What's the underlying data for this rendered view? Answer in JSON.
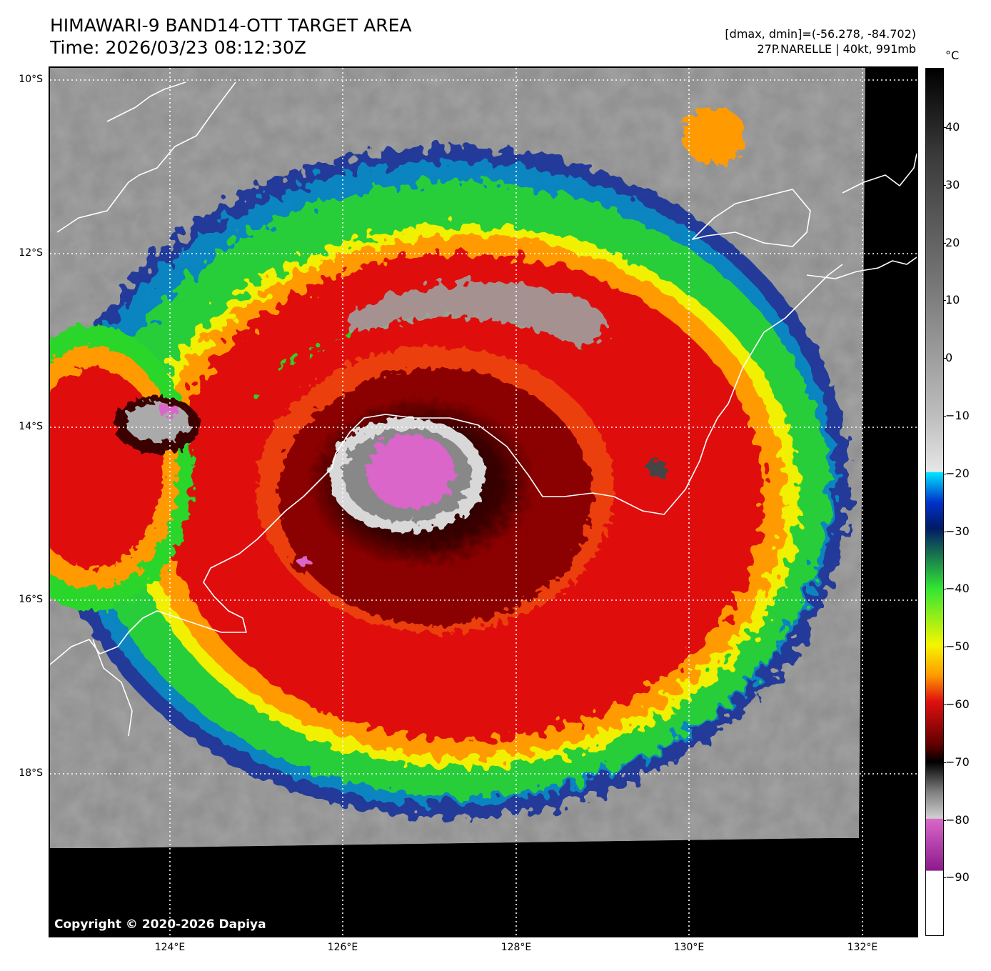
{
  "header": {
    "title_line1": "HIMAWARI-9 BAND14-OTT TARGET AREA",
    "title_line2": "Time: 2026/03/23 08:12:30Z",
    "stats_line1": "[dmax, dmin]=(-56.278, -84.702)",
    "stats_line2": "27P.NARELLE | 40kt, 991mb"
  },
  "map": {
    "copyright": "Copyright © 2020-2026 Dapiya",
    "lat_labels": [
      "10°S",
      "12°S",
      "14°S",
      "16°S",
      "18°S"
    ],
    "lon_labels": [
      "124°E",
      "126°E",
      "128°E",
      "130°E",
      "132°E"
    ]
  },
  "colorbar": {
    "unit": "°C",
    "labels": [
      "40",
      "30",
      "20",
      "10",
      "0",
      "−10",
      "−20",
      "−30",
      "−40",
      "−50",
      "−60",
      "−70",
      "−80",
      "−90"
    ],
    "colors": {
      "magenta": "#d966c8",
      "purple": "#8c1a8c",
      "black": "#000000",
      "red": "#e01010",
      "orange": "#ff9a00",
      "yellow": "#f5f500",
      "green": "#33e533",
      "blue": "#0033cc",
      "navy": "#001a66",
      "cyan": "#00e5ff",
      "light_gray": "#d0d0d0",
      "mid_gray": "#808080"
    }
  }
}
